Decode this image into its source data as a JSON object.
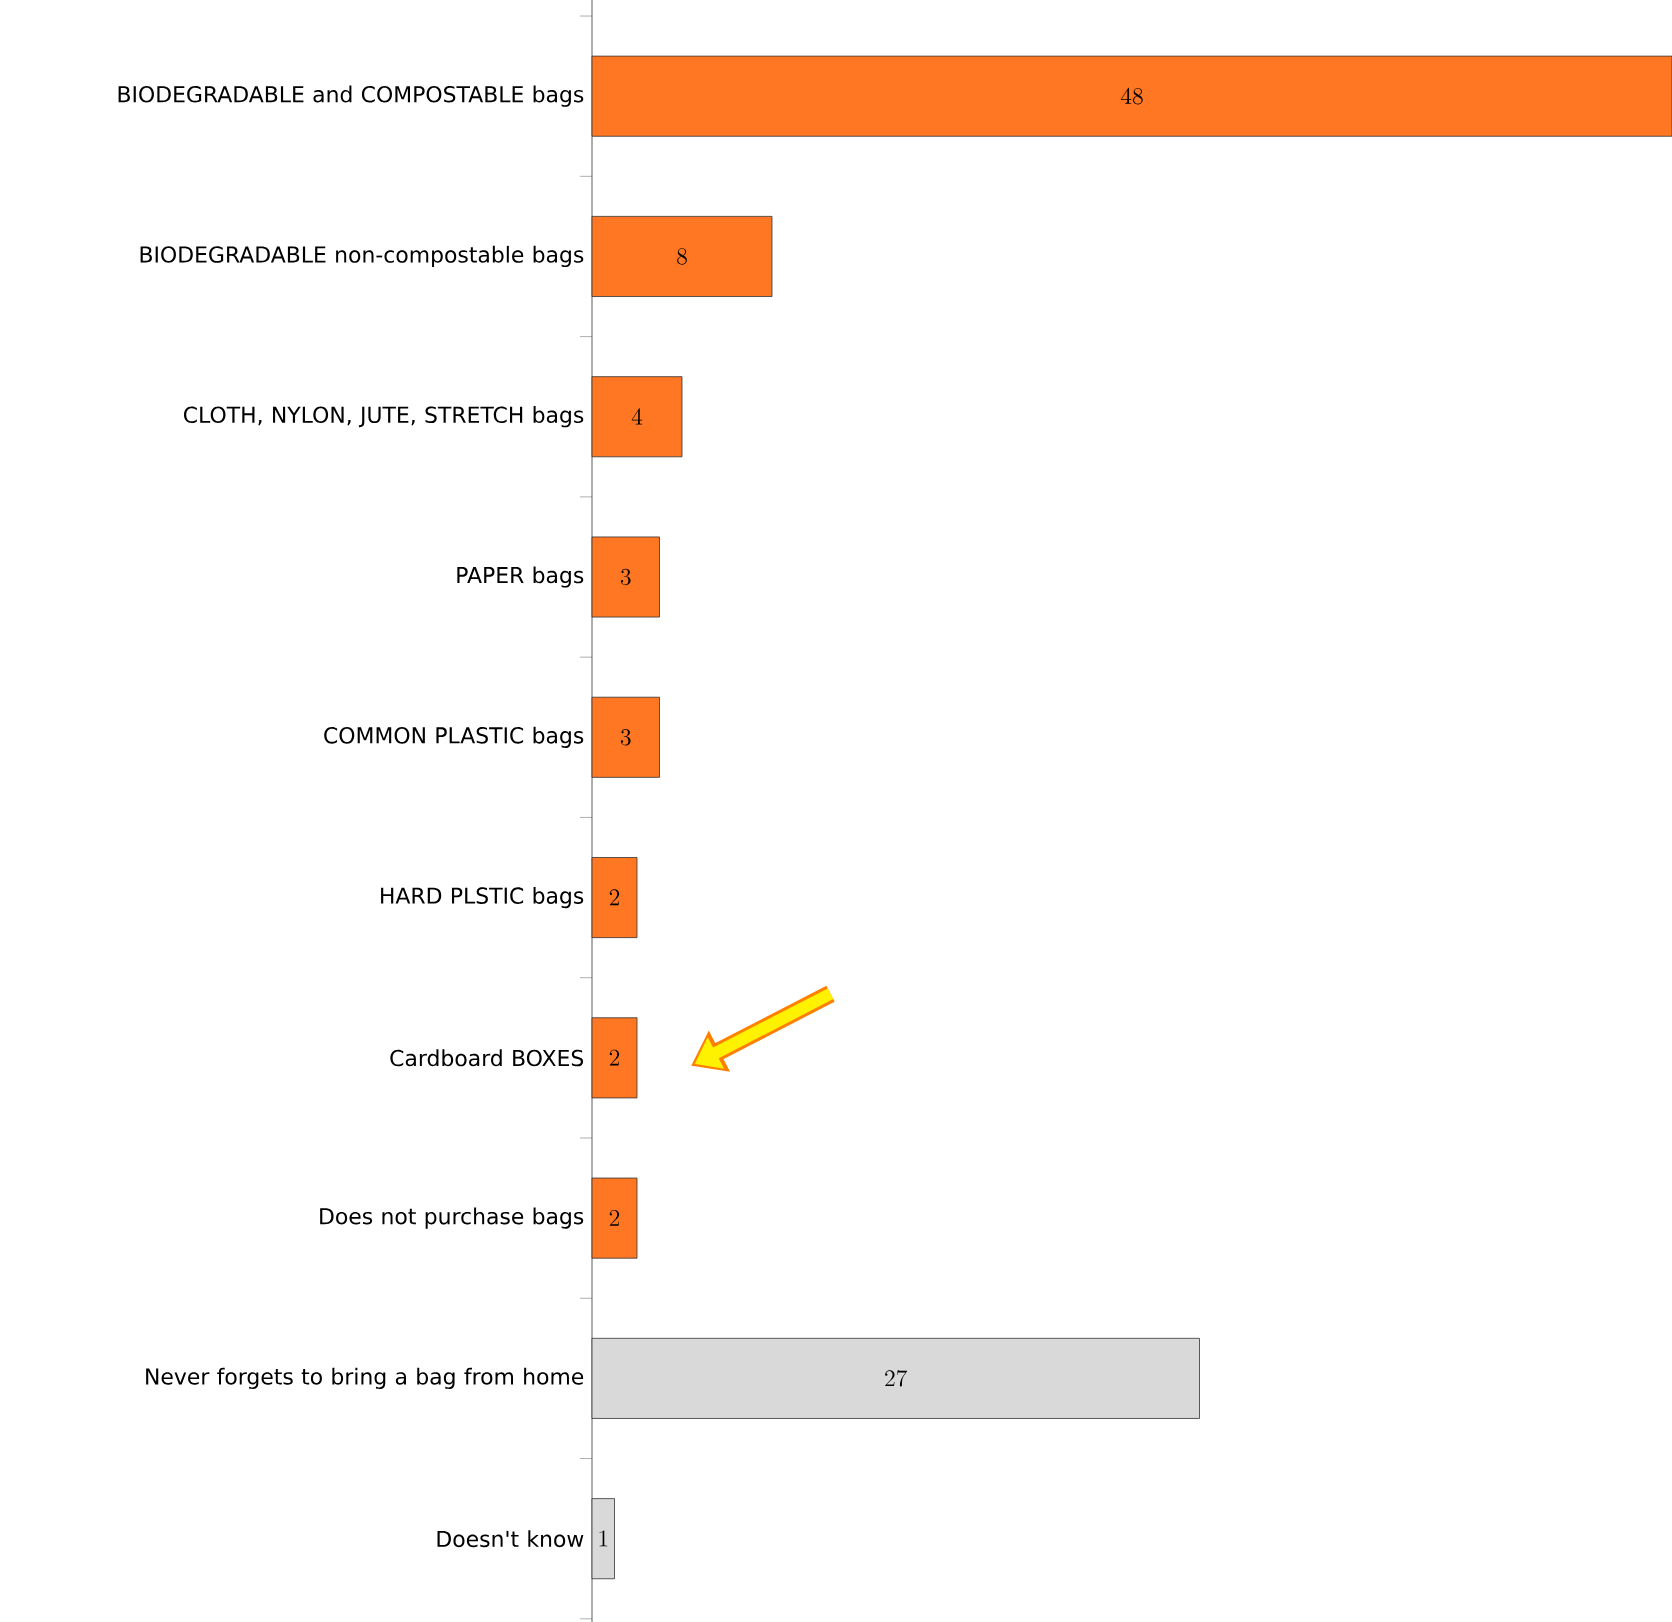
{
  "chart_data": {
    "type": "bar",
    "orientation": "horizontal",
    "categories": [
      "BIODEGRADABLE and COMPOSTABLE bags",
      "BIODEGRADABLE non-compostable bags",
      "CLOTH, NYLON, JUTE, STRETCH bags",
      "PAPER bags",
      "COMMON PLASTIC bags",
      "HARD PLSTIC bags",
      "Cardboard BOXES",
      "Does not purchase bags",
      "Never forgets to bring a bag from home",
      "Doesn't know"
    ],
    "values": [
      48,
      8,
      4,
      3,
      3,
      2,
      2,
      2,
      27,
      1
    ],
    "colors": [
      "#ff7722",
      "#ff7722",
      "#ff7722",
      "#ff7722",
      "#ff7722",
      "#ff7722",
      "#ff7722",
      "#ff7722",
      "#d9d9d9",
      "#d9d9d9"
    ],
    "data_labels": true,
    "tick_labels": "y"
  }
}
